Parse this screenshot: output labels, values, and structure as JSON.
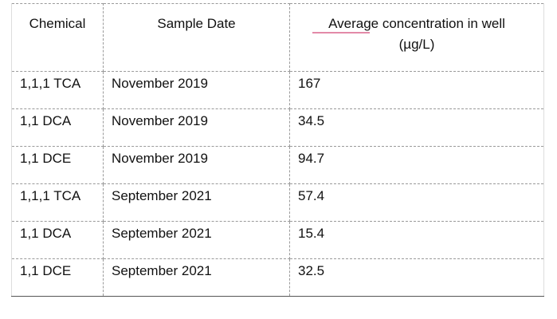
{
  "table": {
    "header": {
      "chemical": "Chemical",
      "sample_date": "Sample Date",
      "concentration": {
        "label": "Average concentration in well",
        "unit": "(µg/L)"
      }
    },
    "rows": [
      [
        "1,1,1 TCA",
        "November 2019",
        167
      ],
      [
        "1,1 DCA",
        "November 2019",
        34.5
      ],
      [
        "1,1 DCE",
        "November 2019",
        94.7
      ],
      [
        "1,1,1 TCA",
        "September 2021",
        57.4
      ],
      [
        "1,1 DCA",
        "September 2021",
        15.4
      ],
      [
        "1,1 DCE",
        "September 2021",
        32.5
      ]
    ]
  }
}
